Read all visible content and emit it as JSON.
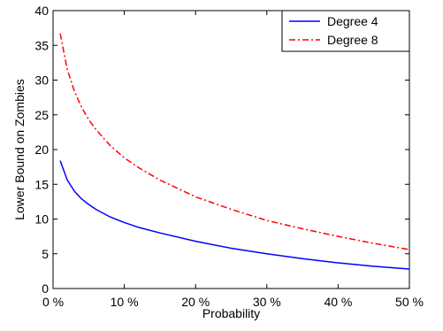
{
  "chart_data": {
    "type": "line",
    "xlabel": "Probability",
    "ylabel": "Lower Bound on Zombies",
    "xlim": [
      0,
      50
    ],
    "ylim": [
      0,
      40
    ],
    "x_ticks": [
      0,
      10,
      20,
      30,
      40,
      50
    ],
    "x_tick_labels": [
      "0 %",
      "10 %",
      "20 %",
      "30 %",
      "40 %",
      "50 %"
    ],
    "y_ticks": [
      0,
      5,
      10,
      15,
      20,
      25,
      30,
      35,
      40
    ],
    "y_tick_labels": [
      "0",
      "5",
      "10",
      "15",
      "20",
      "25",
      "30",
      "35",
      "40"
    ],
    "grid": false,
    "legend_position": "top-right",
    "x": [
      1,
      2,
      3,
      4,
      5,
      6,
      8,
      10,
      12,
      15,
      20,
      25,
      30,
      35,
      40,
      45,
      50
    ],
    "series": [
      {
        "name": "Degree 4",
        "color": "#0000ff",
        "line_style": "solid",
        "values": [
          18.4,
          15.6,
          14.0,
          12.9,
          12.1,
          11.4,
          10.3,
          9.5,
          8.8,
          8.0,
          6.8,
          5.8,
          5.0,
          4.3,
          3.7,
          3.2,
          2.8
        ]
      },
      {
        "name": "Degree 8",
        "color": "#ff0000",
        "line_style": "dash-dot",
        "values": [
          36.7,
          31.5,
          28.4,
          26.1,
          24.3,
          22.9,
          20.6,
          18.8,
          17.4,
          15.6,
          13.2,
          11.4,
          9.8,
          8.6,
          7.5,
          6.5,
          5.6
        ]
      }
    ]
  }
}
